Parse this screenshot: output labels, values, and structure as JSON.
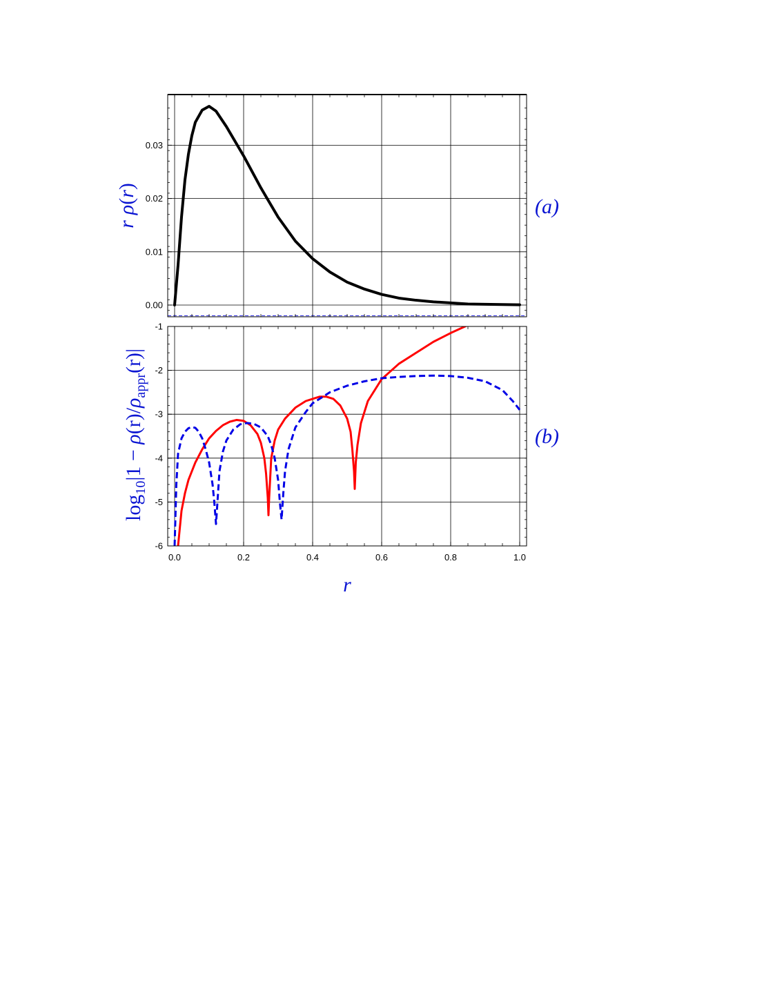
{
  "chart_data": [
    {
      "panel_label": "(a)",
      "type": "line",
      "ylabel": {
        "r": "r",
        "rho": "ρ",
        "lp": "(",
        "r2": "r",
        "rp": ")"
      },
      "xlim": [
        0,
        1.0
      ],
      "ylim": [
        -0.002,
        0.039
      ],
      "grid": true,
      "ytick_labels": [
        "0.00",
        "0.01",
        "0.02",
        "0.03"
      ],
      "ytick_values": [
        0,
        0.01,
        0.02,
        0.03
      ],
      "baseline_dashed_y": -0.002,
      "series": [
        {
          "color": "#000000",
          "style": "solid",
          "x": [
            0.0,
            0.01,
            0.02,
            0.03,
            0.04,
            0.05,
            0.06,
            0.08,
            0.1,
            0.12,
            0.15,
            0.18,
            0.2,
            0.25,
            0.3,
            0.35,
            0.4,
            0.45,
            0.5,
            0.55,
            0.6,
            0.65,
            0.7,
            0.75,
            0.8,
            0.85,
            0.9,
            0.95,
            1.0
          ],
          "y": [
            0.0,
            0.0075,
            0.0165,
            0.0235,
            0.0283,
            0.0318,
            0.0343,
            0.0366,
            0.0373,
            0.0364,
            0.0335,
            0.0302,
            0.028,
            0.022,
            0.0165,
            0.012,
            0.0087,
            0.0062,
            0.0043,
            0.003,
            0.002,
            0.0013,
            0.0009,
            0.0006,
            0.0004,
            0.0002,
            0.00015,
            0.0001,
            5e-05
          ]
        }
      ]
    },
    {
      "panel_label": "(b)",
      "type": "line",
      "ylabel": {
        "log": "log",
        "sub10": "10",
        "bar1": "|1 − ",
        "rho1": "ρ",
        "r1": "(r)/",
        "rho2": "ρ",
        "appr": "appr",
        "r2": "(r)|"
      },
      "xlabel": "r",
      "xlim": [
        0,
        1.0
      ],
      "ylim": [
        -6,
        -1
      ],
      "grid": true,
      "xtick_labels": [
        "0.0",
        "0.2",
        "0.4",
        "0.6",
        "0.8",
        "1.0"
      ],
      "xtick_values": [
        0,
        0.2,
        0.4,
        0.6,
        0.8,
        1.0
      ],
      "ytick_labels": [
        "-6",
        "-5",
        "-4",
        "-3",
        "-2",
        "-1"
      ],
      "ytick_values": [
        -6,
        -5,
        -4,
        -3,
        -2,
        -1
      ],
      "series": [
        {
          "color": "#ff0000",
          "style": "solid",
          "x": [
            0.01,
            0.02,
            0.03,
            0.04,
            0.05,
            0.06,
            0.08,
            0.1,
            0.12,
            0.14,
            0.16,
            0.18,
            0.2,
            0.22,
            0.24,
            0.25,
            0.26,
            0.265,
            0.27,
            0.272,
            0.274,
            0.28,
            0.29,
            0.3,
            0.32,
            0.35,
            0.38,
            0.4,
            0.42,
            0.44,
            0.46,
            0.48,
            0.5,
            0.51,
            0.515,
            0.52,
            0.522,
            0.525,
            0.53,
            0.54,
            0.56,
            0.6,
            0.65,
            0.7,
            0.75,
            0.8,
            0.85
          ],
          "y": [
            -6.0,
            -5.2,
            -4.8,
            -4.5,
            -4.3,
            -4.1,
            -3.8,
            -3.55,
            -3.38,
            -3.25,
            -3.17,
            -3.13,
            -3.15,
            -3.25,
            -3.45,
            -3.65,
            -4.0,
            -4.35,
            -4.9,
            -5.3,
            -4.9,
            -4.0,
            -3.6,
            -3.35,
            -3.1,
            -2.85,
            -2.7,
            -2.65,
            -2.6,
            -2.6,
            -2.65,
            -2.8,
            -3.1,
            -3.4,
            -3.8,
            -4.3,
            -4.7,
            -4.1,
            -3.7,
            -3.2,
            -2.7,
            -2.2,
            -1.85,
            -1.6,
            -1.35,
            -1.15,
            -0.97
          ]
        },
        {
          "color": "#0000e6",
          "style": "dashed",
          "x": [
            0.0,
            0.005,
            0.01,
            0.02,
            0.03,
            0.04,
            0.05,
            0.06,
            0.07,
            0.08,
            0.09,
            0.1,
            0.11,
            0.115,
            0.12,
            0.125,
            0.13,
            0.14,
            0.15,
            0.17,
            0.19,
            0.21,
            0.23,
            0.25,
            0.27,
            0.28,
            0.29,
            0.3,
            0.305,
            0.31,
            0.315,
            0.32,
            0.33,
            0.35,
            0.38,
            0.4,
            0.45,
            0.5,
            0.55,
            0.6,
            0.65,
            0.7,
            0.75,
            0.8,
            0.85,
            0.9,
            0.95,
            0.98,
            1.0
          ],
          "y": [
            -6.0,
            -4.6,
            -3.9,
            -3.55,
            -3.4,
            -3.32,
            -3.29,
            -3.31,
            -3.4,
            -3.55,
            -3.8,
            -4.1,
            -4.6,
            -5.0,
            -5.5,
            -4.9,
            -4.3,
            -3.85,
            -3.6,
            -3.35,
            -3.23,
            -3.2,
            -3.22,
            -3.3,
            -3.5,
            -3.7,
            -4.0,
            -4.5,
            -5.0,
            -5.4,
            -4.8,
            -4.3,
            -3.8,
            -3.3,
            -2.95,
            -2.75,
            -2.5,
            -2.35,
            -2.25,
            -2.18,
            -2.15,
            -2.13,
            -2.12,
            -2.13,
            -2.17,
            -2.25,
            -2.45,
            -2.7,
            -2.9
          ]
        }
      ]
    }
  ]
}
